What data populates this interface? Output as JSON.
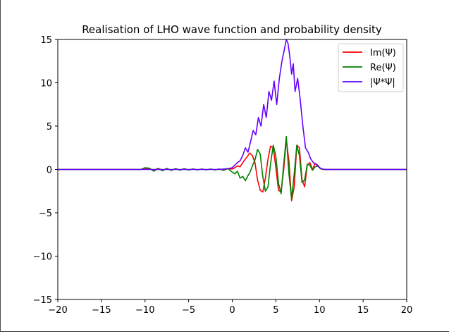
{
  "chart_data": {
    "type": "line",
    "title": "Realisation of LHO wave function and probability density",
    "xlabel": "",
    "ylabel": "",
    "xlim": [
      -20,
      20
    ],
    "ylim": [
      -15,
      15
    ],
    "xticks": [
      -20,
      -15,
      -10,
      -5,
      0,
      5,
      10,
      15,
      20
    ],
    "yticks": [
      15,
      10,
      5,
      0,
      -5,
      -10,
      -15
    ],
    "xtick_labels": [
      "−20",
      "−15",
      "−10",
      "−5",
      "0",
      "5",
      "10",
      "15",
      "20"
    ],
    "ytick_labels": [
      "15",
      "10",
      "5",
      "0",
      "−5",
      "−10",
      "−15"
    ],
    "grid": false,
    "legend_position": "top-right",
    "series": [
      {
        "name": "Im(Ψ)",
        "color": "#ff0000",
        "x": [
          -20,
          -10.5,
          -10,
          -9.5,
          -9,
          -8.5,
          -8,
          -7.5,
          -7,
          -6.5,
          -6,
          -5.5,
          -5,
          -4.5,
          -4,
          -3.5,
          -3,
          -2.5,
          -2,
          -1.5,
          -1,
          -0.5,
          0,
          0.3,
          0.6,
          0.9,
          1.2,
          1.5,
          1.8,
          2.0,
          2.3,
          2.6,
          2.9,
          3.2,
          3.5,
          3.8,
          4.1,
          4.4,
          4.7,
          5.0,
          5.3,
          5.6,
          5.9,
          6.2,
          6.5,
          6.8,
          7.1,
          7.4,
          7.7,
          8.0,
          8.3,
          8.6,
          8.9,
          9.2,
          9.5,
          9.8,
          10.1,
          10.4,
          10.7,
          11,
          20
        ],
        "y": [
          0,
          0,
          0.05,
          0.1,
          -0.1,
          0.12,
          -0.08,
          0.1,
          -0.1,
          0.08,
          -0.06,
          0.08,
          -0.06,
          0.05,
          -0.05,
          0.05,
          -0.04,
          0.04,
          -0.03,
          0.05,
          -0.05,
          0.1,
          0.05,
          0.2,
          0.4,
          0.3,
          0.8,
          1.2,
          1.6,
          1.9,
          1.6,
          0.8,
          -1.2,
          -2.4,
          -2.6,
          -1.0,
          1.2,
          2.7,
          2.5,
          0.2,
          -2.4,
          -2.6,
          0.0,
          3.4,
          1.0,
          -3.6,
          -2.0,
          2.8,
          2.5,
          -1.2,
          -2.0,
          0.5,
          0.8,
          0.0,
          0.7,
          0.5,
          0.1,
          0.02,
          0,
          0,
          0
        ]
      },
      {
        "name": "Re(Ψ)",
        "color": "#008000",
        "x": [
          -20,
          -10.5,
          -10,
          -9.5,
          -9,
          -8.5,
          -8,
          -7.5,
          -7,
          -6.5,
          -6,
          -5.5,
          -5,
          -4.5,
          -4,
          -3.5,
          -3,
          -2.5,
          -2,
          -1.5,
          -1,
          -0.5,
          0,
          0.3,
          0.6,
          0.9,
          1.2,
          1.5,
          1.8,
          2.0,
          2.3,
          2.6,
          2.9,
          3.2,
          3.5,
          3.8,
          4.1,
          4.4,
          4.7,
          5.0,
          5.3,
          5.6,
          5.9,
          6.2,
          6.5,
          6.8,
          7.1,
          7.4,
          7.7,
          8.0,
          8.3,
          8.6,
          8.9,
          9.2,
          9.5,
          9.8,
          10.1,
          10.4,
          10.7,
          11,
          20
        ],
        "y": [
          0,
          0,
          0.2,
          0.15,
          -0.2,
          0.1,
          -0.15,
          0.12,
          -0.1,
          0.1,
          -0.08,
          0.08,
          -0.06,
          0.06,
          -0.05,
          0.05,
          -0.04,
          0.05,
          -0.05,
          0.05,
          -0.1,
          0.1,
          -0.3,
          -0.5,
          -0.2,
          -1.0,
          -0.8,
          -1.3,
          -0.7,
          -0.4,
          0.4,
          1.1,
          2.3,
          1.8,
          -0.8,
          -2.5,
          -2.0,
          0.7,
          2.8,
          1.5,
          -1.6,
          -2.8,
          0.6,
          3.8,
          -0.5,
          -3.4,
          -0.5,
          2.8,
          1.6,
          -1.5,
          -1.2,
          0.6,
          0.5,
          -0.1,
          0.3,
          0.4,
          0.1,
          0.02,
          0,
          0,
          0
        ]
      },
      {
        "name": "|Ψ*Ψ|",
        "color": "#6600ff",
        "x": [
          -20,
          -1.5,
          -1,
          -0.5,
          0,
          0.3,
          0.6,
          0.9,
          1.2,
          1.5,
          1.8,
          2.1,
          2.4,
          2.7,
          3.0,
          3.3,
          3.6,
          3.9,
          4.2,
          4.5,
          4.8,
          5.1,
          5.4,
          5.7,
          6.0,
          6.2,
          6.4,
          6.6,
          6.8,
          7.0,
          7.2,
          7.5,
          7.8,
          8.1,
          8.4,
          8.7,
          9.0,
          9.3,
          9.6,
          9.9,
          10.2,
          10.5,
          11,
          20
        ],
        "y": [
          0,
          0,
          0.05,
          0.1,
          0.2,
          0.5,
          0.8,
          1.0,
          1.6,
          2.5,
          2.0,
          3.2,
          4.5,
          4.0,
          6.0,
          5.0,
          7.5,
          6.0,
          9.0,
          8.0,
          10.2,
          7.5,
          10.5,
          12.5,
          14.0,
          15.0,
          14.5,
          13.0,
          11.0,
          12.2,
          9.0,
          10.5,
          8.0,
          5.0,
          2.5,
          2.0,
          1.2,
          0.8,
          0.6,
          0.3,
          0.1,
          0.02,
          0,
          0
        ]
      }
    ]
  }
}
